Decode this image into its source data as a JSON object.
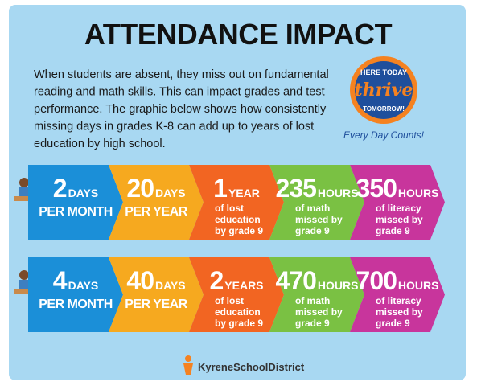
{
  "title": "ATTENDANCE IMPACT",
  "intro": [
    "When students are absent, they miss out on fundamental",
    "reading and math skills. This can impact grades and test",
    "performance. The graphic below shows how consistently",
    "missing days in grades K-8 can add up to years of lost",
    "education by high school."
  ],
  "badge": {
    "top": "HERE TODAY",
    "middle": "thrive",
    "bottom": "TOMORROW!",
    "tagline": "Every Day Counts!"
  },
  "rows": [
    [
      {
        "number": 2,
        "unit": "DAYS",
        "text": [
          "PER MONTH"
        ]
      },
      {
        "number": 20,
        "unit": "DAYS",
        "text": [
          "PER YEAR"
        ]
      },
      {
        "number": 1,
        "unit": "YEAR",
        "text": [
          "of lost",
          "education",
          "by grade 9"
        ]
      },
      {
        "number": 235,
        "unit": "HOURS",
        "text": [
          "of math",
          "missed by",
          "grade 9"
        ]
      },
      {
        "number": 350,
        "unit": "HOURS",
        "text": [
          "of literacy",
          "missed by",
          "grade 9"
        ]
      }
    ],
    [
      {
        "number": 4,
        "unit": "DAYS",
        "text": [
          "PER MONTH"
        ]
      },
      {
        "number": 40,
        "unit": "DAYS",
        "text": [
          "PER YEAR"
        ]
      },
      {
        "number": 2,
        "unit": "YEARS",
        "text": [
          "of lost",
          "education",
          "by grade 9"
        ]
      },
      {
        "number": 470,
        "unit": "HOURS",
        "text": [
          "of math",
          "missed by",
          "grade 9"
        ]
      },
      {
        "number": 700,
        "unit": "HOURS",
        "text": [
          "of literacy",
          "missed by",
          "grade 9"
        ]
      }
    ]
  ],
  "footer": "KyreneSchoolDistrict"
}
